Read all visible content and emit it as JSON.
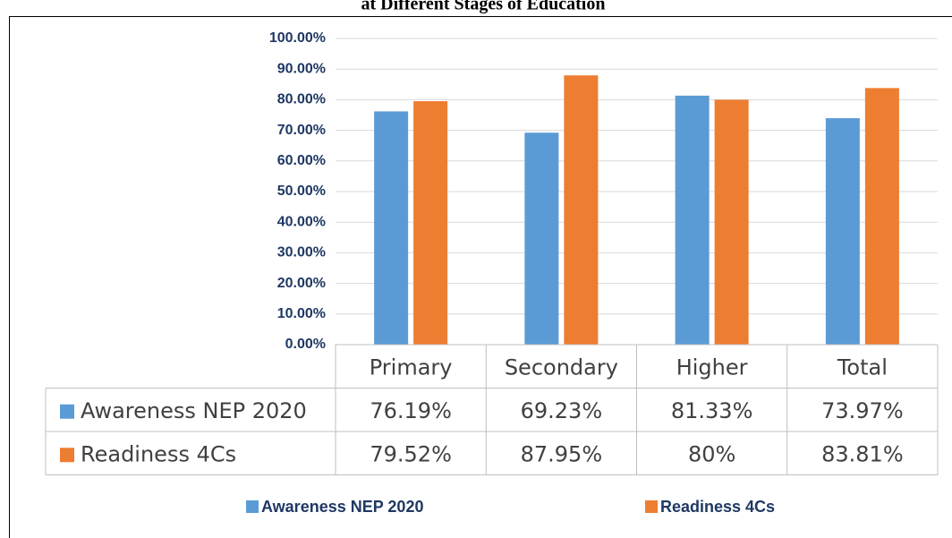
{
  "chart_data": {
    "type": "bar",
    "title": "at Different Stages of Education",
    "categories": [
      "Primary",
      "Secondary",
      "Higher",
      "Total"
    ],
    "series": [
      {
        "name": "Awareness NEP 2020",
        "color": "#5b9bd5",
        "values": [
          76.19,
          69.23,
          81.33,
          73.97
        ],
        "value_labels": [
          "76.19%",
          "69.23%",
          "81.33%",
          "73.97%"
        ]
      },
      {
        "name": "Readiness 4Cs",
        "color": "#ed7d31",
        "values": [
          79.52,
          87.95,
          80,
          83.81
        ],
        "value_labels": [
          "79.52%",
          "87.95%",
          "80%",
          "83.81%"
        ]
      }
    ],
    "ylim": [
      0,
      100
    ],
    "yticks": [
      {
        "value": 0,
        "label": "0.00%"
      },
      {
        "value": 10,
        "label": "10.00%"
      },
      {
        "value": 20,
        "label": "20.00%"
      },
      {
        "value": 30,
        "label": "30.00%"
      },
      {
        "value": 40,
        "label": "40.00%"
      },
      {
        "value": 50,
        "label": "50.00%"
      },
      {
        "value": 60,
        "label": "60.00%"
      },
      {
        "value": 70,
        "label": "70.00%"
      },
      {
        "value": 80,
        "label": "80.00%"
      },
      {
        "value": 90,
        "label": "90.00%"
      },
      {
        "value": 100,
        "label": "100.00%"
      }
    ],
    "grid": true,
    "legend": "bottom"
  }
}
